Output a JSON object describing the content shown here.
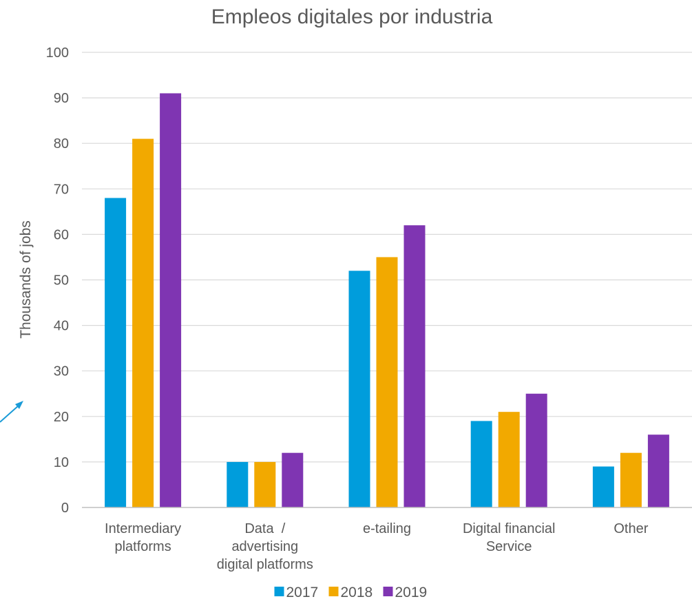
{
  "chart_data": {
    "type": "bar",
    "title": "Empleos digitales por industria",
    "xlabel": "",
    "ylabel": "Thousands of jobs",
    "ylim": [
      0,
      100
    ],
    "yticks": [
      "0",
      "10",
      "20",
      "30",
      "40",
      "50",
      "60",
      "70",
      "80",
      "90",
      "100"
    ],
    "grid": true,
    "legend_position": "bottom",
    "categories": [
      [
        "Intermediary",
        "platforms"
      ],
      [
        "Data  /",
        "advertising",
        "digital platforms"
      ],
      [
        "e-tailing"
      ],
      [
        "Digital financial",
        "Service"
      ],
      [
        "Other"
      ]
    ],
    "series": [
      {
        "name": "2017",
        "color": "#009ddc",
        "values": [
          68,
          10,
          52,
          19,
          9
        ]
      },
      {
        "name": "2018",
        "color": "#f2a900",
        "values": [
          81,
          10,
          55,
          21,
          12
        ]
      },
      {
        "name": "2019",
        "color": "#7f35b2",
        "values": [
          91,
          12,
          62,
          25,
          16
        ]
      }
    ]
  }
}
